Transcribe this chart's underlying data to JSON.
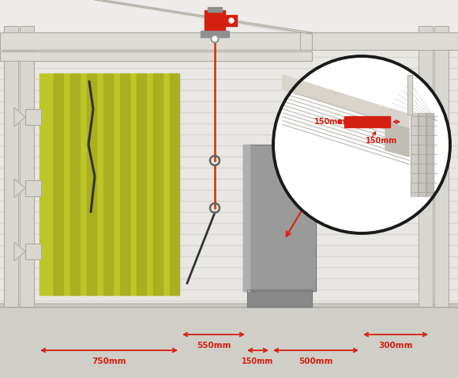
{
  "bg_color": "#edecea",
  "wall_bg": "#e8e7e3",
  "wall_stripe_color": "#d8d6d0",
  "floor_color": "#d0cec8",
  "floor_top_color": "#b8b6b0",
  "beam_fill": "#dddbd5",
  "beam_edge": "#aaaaa0",
  "post_fill": "#d8d6d0",
  "post_edge": "#aaa8a0",
  "green_main": "#bdc626",
  "green_dark": "#a8b020",
  "gray_box": "#9a9a9a",
  "gray_box_edge": "#787878",
  "gray_base": "#888888",
  "red_color": "#d42010",
  "dim_color": "#d42010",
  "circle_stroke": "#1a1a1a",
  "motor_red": "#d42010",
  "motor_gray": "#909090",
  "rope_color": "#cc3300",
  "cable_dark": "#333333",
  "timber_fill": "#d8d4cc",
  "timber_edge": "#aaa8a0",
  "hatch_color": "#c0bdb8",
  "white": "#ffffff",
  "dims": {
    "750mm": "750mm",
    "550mm": "550mm",
    "150mm": "150mm",
    "500mm": "500mm",
    "300mm": "300mm"
  }
}
